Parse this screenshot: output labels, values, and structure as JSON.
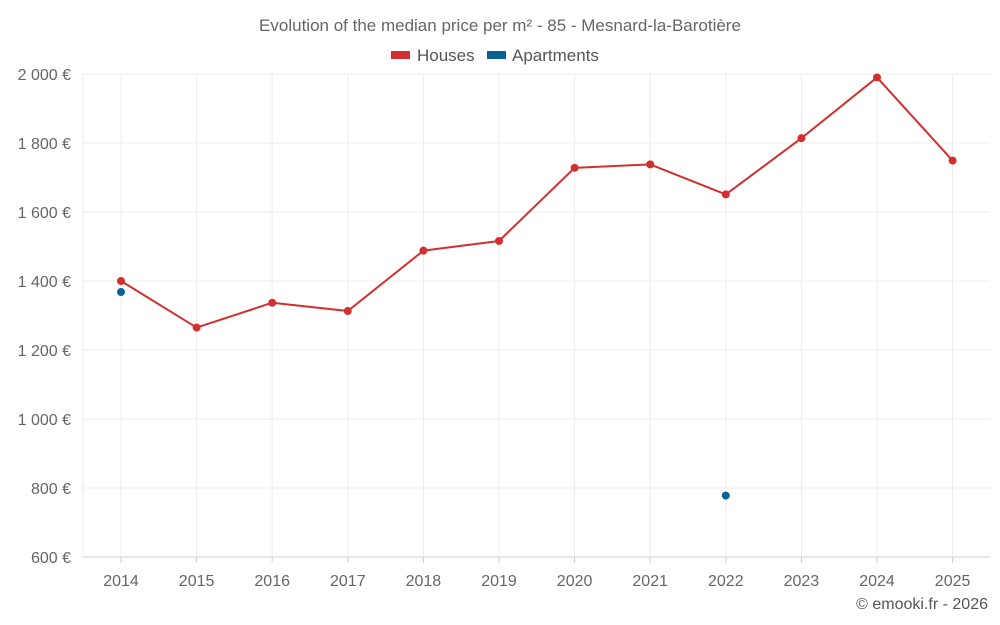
{
  "chart_data": {
    "type": "line",
    "title": "Evolution of the median price per m² - 85 - Mesnard-la-Barotière",
    "categories": [
      "2014",
      "2015",
      "2016",
      "2017",
      "2018",
      "2019",
      "2020",
      "2021",
      "2022",
      "2023",
      "2024",
      "2025"
    ],
    "ylim": [
      600,
      2000
    ],
    "yticks": [
      600,
      800,
      1000,
      1200,
      1400,
      1600,
      1800,
      2000
    ],
    "ytick_labels": [
      "600 €",
      "800 €",
      "1 000 €",
      "1 200 €",
      "1 400 €",
      "1 600 €",
      "1 800 €",
      "2 000 €"
    ],
    "grid": true,
    "legend_position": "top-center",
    "series": [
      {
        "name": "Houses",
        "color": "#d32f2f",
        "line": true,
        "values": [
          1400,
          1265,
          1337,
          1313,
          1488,
          1516,
          1728,
          1738,
          1651,
          1814,
          1990,
          1749
        ]
      },
      {
        "name": "Apartments",
        "color": "#0a6196",
        "line": false,
        "values": [
          1368,
          null,
          null,
          null,
          null,
          null,
          null,
          null,
          778,
          null,
          null,
          null
        ]
      }
    ]
  },
  "footer": "© emooki.fr - 2026"
}
